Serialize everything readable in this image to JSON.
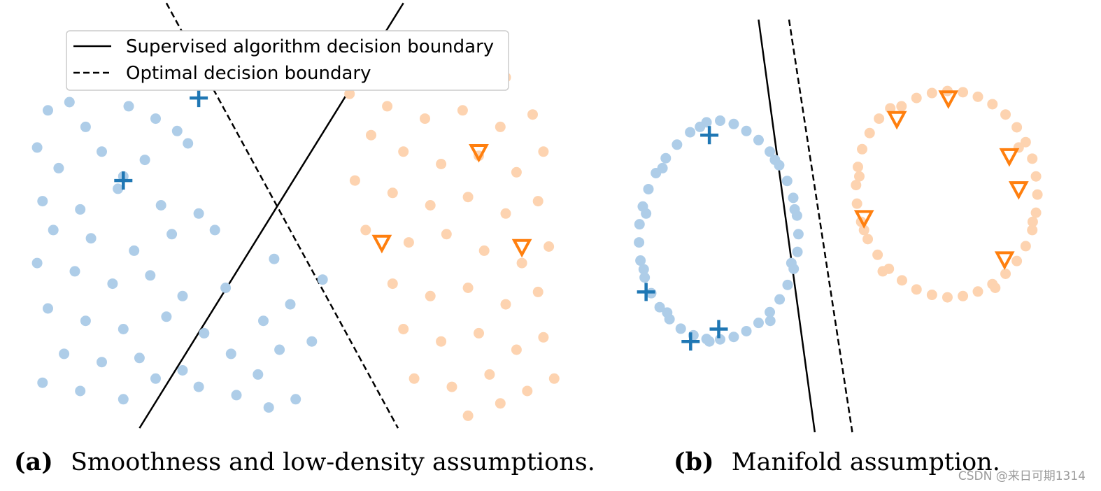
{
  "legend": {
    "solid_label": "Supervised algorithm decision boundary",
    "dashed_label": "Optimal decision boundary"
  },
  "captions": {
    "a_letter": "(a)",
    "a_text": "Smoothness and low-density assumptions.",
    "b_letter": "(b)",
    "b_text": "Manifold assumption."
  },
  "watermark": "CSDN @来日可期1314",
  "colors": {
    "class0_unlabeled": "#aecde8",
    "class1_unlabeled": "#fdd3b0",
    "class0_labeled": "#1f77b4",
    "class1_labeled": "#ff7f0e",
    "boundary": "#000000"
  },
  "chart_data": [
    {
      "type": "scatter",
      "panel": "a",
      "caption": "Smoothness and low-density assumptions.",
      "xlim": [
        0,
        10
      ],
      "ylim": [
        0,
        10
      ],
      "grid": false,
      "legend_position": "top",
      "boundaries": [
        {
          "name": "Supervised algorithm decision boundary",
          "style": "solid",
          "points": [
            [
              2.2,
              0.1
            ],
            [
              7.1,
              10.4
            ]
          ]
        },
        {
          "name": "Optimal decision boundary",
          "style": "dashed",
          "points": [
            [
              2.7,
              10.4
            ],
            [
              7.0,
              0.1
            ]
          ]
        }
      ],
      "series": [
        {
          "class": "blue-unlabeled",
          "marker": "circle",
          "points": [
            [
              0.5,
              7.8
            ],
            [
              0.9,
              8.0
            ],
            [
              0.3,
              6.9
            ],
            [
              1.2,
              7.4
            ],
            [
              2.0,
              7.9
            ],
            [
              2.5,
              7.6
            ],
            [
              2.9,
              7.3
            ],
            [
              0.7,
              6.4
            ],
            [
              1.5,
              6.8
            ],
            [
              1.9,
              6.2
            ],
            [
              2.3,
              6.6
            ],
            [
              3.1,
              7.0
            ],
            [
              0.4,
              5.6
            ],
            [
              1.1,
              5.4
            ],
            [
              1.8,
              5.9
            ],
            [
              2.6,
              5.5
            ],
            [
              3.3,
              5.3
            ],
            [
              0.6,
              4.9
            ],
            [
              1.3,
              4.7
            ],
            [
              2.1,
              4.4
            ],
            [
              2.8,
              4.8
            ],
            [
              3.6,
              4.9
            ],
            [
              0.3,
              4.1
            ],
            [
              1.0,
              3.9
            ],
            [
              1.7,
              3.6
            ],
            [
              2.4,
              3.8
            ],
            [
              3.0,
              3.3
            ],
            [
              3.8,
              3.5
            ],
            [
              0.5,
              3.0
            ],
            [
              1.2,
              2.7
            ],
            [
              1.9,
              2.5
            ],
            [
              2.7,
              2.8
            ],
            [
              3.4,
              2.4
            ],
            [
              0.8,
              1.9
            ],
            [
              1.5,
              1.7
            ],
            [
              2.2,
              1.8
            ],
            [
              3.0,
              1.5
            ],
            [
              3.9,
              1.9
            ],
            [
              0.4,
              1.2
            ],
            [
              1.1,
              1.0
            ],
            [
              1.9,
              0.8
            ],
            [
              2.5,
              1.3
            ],
            [
              3.3,
              1.1
            ],
            [
              4.0,
              0.9
            ],
            [
              4.6,
              0.6
            ],
            [
              5.1,
              0.8
            ],
            [
              4.4,
              1.4
            ],
            [
              4.8,
              2.0
            ],
            [
              5.4,
              2.2
            ],
            [
              4.5,
              2.7
            ],
            [
              5.0,
              3.1
            ],
            [
              5.6,
              3.7
            ],
            [
              4.7,
              4.2
            ]
          ]
        },
        {
          "class": "orange-unlabeled",
          "marker": "circle",
          "points": [
            [
              5.0,
              9.3
            ],
            [
              5.4,
              9.0
            ],
            [
              6.0,
              8.9
            ],
            [
              6.6,
              8.7
            ],
            [
              7.2,
              8.5
            ],
            [
              7.9,
              8.8
            ],
            [
              8.5,
              8.9
            ],
            [
              9.0,
              8.6
            ],
            [
              6.1,
              8.2
            ],
            [
              6.8,
              7.9
            ],
            [
              7.5,
              7.6
            ],
            [
              8.2,
              7.8
            ],
            [
              8.9,
              7.4
            ],
            [
              9.5,
              7.7
            ],
            [
              6.5,
              7.2
            ],
            [
              7.1,
              6.8
            ],
            [
              7.8,
              6.5
            ],
            [
              8.5,
              6.7
            ],
            [
              9.2,
              6.3
            ],
            [
              9.7,
              6.8
            ],
            [
              6.2,
              6.1
            ],
            [
              6.9,
              5.8
            ],
            [
              7.6,
              5.5
            ],
            [
              8.3,
              5.7
            ],
            [
              9.0,
              5.3
            ],
            [
              9.6,
              5.6
            ],
            [
              6.4,
              4.9
            ],
            [
              7.2,
              4.6
            ],
            [
              7.9,
              4.8
            ],
            [
              8.6,
              4.4
            ],
            [
              9.3,
              4.1
            ],
            [
              9.8,
              4.5
            ],
            [
              6.9,
              3.6
            ],
            [
              7.6,
              3.3
            ],
            [
              8.3,
              3.5
            ],
            [
              9.0,
              3.1
            ],
            [
              9.6,
              3.4
            ],
            [
              7.1,
              2.5
            ],
            [
              7.8,
              2.2
            ],
            [
              8.5,
              2.4
            ],
            [
              9.2,
              2.0
            ],
            [
              9.7,
              2.3
            ],
            [
              7.3,
              1.3
            ],
            [
              8.0,
              1.1
            ],
            [
              8.7,
              1.4
            ],
            [
              9.4,
              1.0
            ],
            [
              9.9,
              1.3
            ],
            [
              8.3,
              0.4
            ],
            [
              8.9,
              0.7
            ]
          ]
        },
        {
          "class": "blue-labeled",
          "marker": "plus",
          "points": [
            [
              3.3,
              8.1
            ],
            [
              1.9,
              6.1
            ]
          ]
        },
        {
          "class": "orange-labeled",
          "marker": "triangle-down",
          "points": [
            [
              8.5,
              6.8
            ],
            [
              6.7,
              4.6
            ],
            [
              9.3,
              4.5
            ]
          ]
        }
      ]
    },
    {
      "type": "scatter",
      "panel": "b",
      "caption": "Manifold assumption.",
      "xlim": [
        0,
        10
      ],
      "ylim": [
        0,
        10
      ],
      "grid": false,
      "boundaries": [
        {
          "name": "Supervised algorithm decision boundary",
          "style": "solid",
          "points": [
            [
              3.35,
              10.0
            ],
            [
              4.55,
              0.0
            ]
          ]
        },
        {
          "name": "Optimal decision boundary",
          "style": "dashed",
          "points": [
            [
              4.0,
              10.0
            ],
            [
              5.35,
              0.0
            ]
          ]
        }
      ],
      "series": [
        {
          "class": "blue-unlabeled",
          "marker": "circle",
          "points": [
            [
              2.24,
              7.51
            ],
            [
              2.53,
              7.55
            ],
            [
              2.82,
              7.47
            ],
            [
              3.09,
              7.3
            ],
            [
              3.35,
              7.08
            ],
            [
              3.59,
              6.8
            ],
            [
              3.79,
              6.47
            ],
            [
              3.96,
              6.09
            ],
            [
              4.09,
              5.68
            ],
            [
              4.17,
              5.25
            ],
            [
              4.2,
              4.8
            ],
            [
              4.18,
              4.37
            ],
            [
              4.1,
              3.96
            ],
            [
              3.97,
              3.57
            ],
            [
              3.8,
              3.22
            ],
            [
              3.59,
              2.91
            ],
            [
              3.35,
              2.65
            ],
            [
              3.09,
              2.45
            ],
            [
              2.82,
              2.31
            ],
            [
              2.53,
              2.25
            ],
            [
              2.24,
              2.26
            ],
            [
              1.96,
              2.35
            ],
            [
              1.69,
              2.51
            ],
            [
              1.45,
              2.74
            ],
            [
              1.24,
              3.03
            ],
            [
              1.06,
              3.37
            ],
            [
              0.92,
              3.75
            ],
            [
              0.83,
              4.16
            ],
            [
              0.8,
              4.6
            ],
            [
              0.81,
              5.04
            ],
            [
              0.88,
              5.47
            ],
            [
              1.0,
              5.89
            ],
            [
              1.16,
              6.28
            ],
            [
              1.37,
              6.64
            ],
            [
              1.61,
              6.97
            ],
            [
              1.89,
              7.27
            ],
            [
              2.1,
              7.4
            ],
            [
              1.3,
              6.4
            ],
            [
              0.95,
              5.3
            ],
            [
              0.9,
              3.95
            ],
            [
              1.4,
              2.9
            ],
            [
              2.3,
              2.2
            ],
            [
              3.6,
              2.7
            ],
            [
              4.05,
              4.1
            ],
            [
              4.12,
              5.4
            ],
            [
              3.7,
              6.6
            ]
          ]
        },
        {
          "class": "orange-unlabeled",
          "marker": "circle",
          "points": [
            [
              6.4,
              7.9
            ],
            [
              6.72,
              8.1
            ],
            [
              7.05,
              8.22
            ],
            [
              7.38,
              8.27
            ],
            [
              7.71,
              8.24
            ],
            [
              8.03,
              8.13
            ],
            [
              8.34,
              7.95
            ],
            [
              8.62,
              7.7
            ],
            [
              8.86,
              7.39
            ],
            [
              9.05,
              7.03
            ],
            [
              9.19,
              6.63
            ],
            [
              9.27,
              6.2
            ],
            [
              9.3,
              5.76
            ],
            [
              9.27,
              5.32
            ],
            [
              9.19,
              4.9
            ],
            [
              9.05,
              4.51
            ],
            [
              8.86,
              4.15
            ],
            [
              8.62,
              3.84
            ],
            [
              8.34,
              3.59
            ],
            [
              8.03,
              3.41
            ],
            [
              7.71,
              3.3
            ],
            [
              7.38,
              3.27
            ],
            [
              7.05,
              3.33
            ],
            [
              6.72,
              3.46
            ],
            [
              6.41,
              3.68
            ],
            [
              6.13,
              3.96
            ],
            [
              5.89,
              4.3
            ],
            [
              5.68,
              4.68
            ],
            [
              5.54,
              5.1
            ],
            [
              5.45,
              5.54
            ],
            [
              5.43,
              5.99
            ],
            [
              5.47,
              6.43
            ],
            [
              5.56,
              6.86
            ],
            [
              5.72,
              7.25
            ],
            [
              5.92,
              7.6
            ],
            [
              6.16,
              7.85
            ],
            [
              5.5,
              6.2
            ],
            [
              5.6,
              4.9
            ],
            [
              6.0,
              3.9
            ],
            [
              8.9,
              6.9
            ],
            [
              9.2,
              5.1
            ],
            [
              8.4,
              3.5
            ]
          ]
        },
        {
          "class": "blue-labeled",
          "marker": "plus",
          "points": [
            [
              2.3,
              7.2
            ],
            [
              0.95,
              3.4
            ],
            [
              1.9,
              2.2
            ],
            [
              2.5,
              2.5
            ]
          ]
        },
        {
          "class": "orange-labeled",
          "marker": "triangle-down",
          "points": [
            [
              6.3,
              7.6
            ],
            [
              7.4,
              8.1
            ],
            [
              8.7,
              6.7
            ],
            [
              8.9,
              5.9
            ],
            [
              5.6,
              5.2
            ],
            [
              8.6,
              4.2
            ]
          ]
        }
      ]
    }
  ]
}
